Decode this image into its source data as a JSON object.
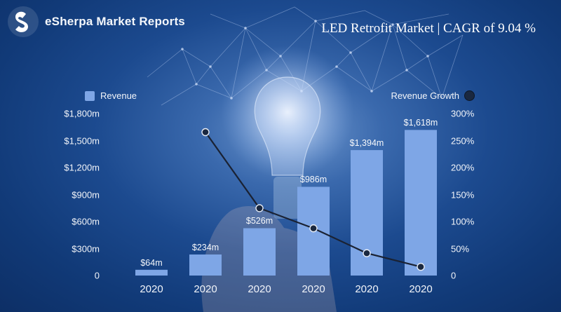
{
  "header": {
    "brand": "eSherpa Market Reports",
    "headline": "LED Retrofit Market | CAGR of 9.04 %"
  },
  "icons": {
    "logo": "esherpa-logo-icon",
    "background": "lightbulb-network-icon"
  },
  "colors": {
    "bar": "#7ea6e6",
    "line": "#1a2233",
    "marker": "#1a2840",
    "background": "#1c4a8f"
  },
  "chart_data": {
    "type": "bar",
    "categories": [
      "2020",
      "2020",
      "2020",
      "2020",
      "2020",
      "2020"
    ],
    "series": [
      {
        "name": "Revenue",
        "type": "bar",
        "axis": "left",
        "values": [
          64,
          234,
          526,
          986,
          1394,
          1618
        ],
        "labels": [
          "$64m",
          "$234m",
          "$526m",
          "$986m",
          "$1,394m",
          "$1,618m"
        ]
      },
      {
        "name": "Revenue Growth",
        "type": "line",
        "axis": "right",
        "values": [
          null,
          265.6,
          124.8,
          87.5,
          41.4,
          16.1
        ]
      }
    ],
    "yaxis_left": {
      "ylim": [
        0,
        1800
      ],
      "ticks": [
        "0",
        "$300m",
        "$600m",
        "$900m",
        "$1,200m",
        "$1,500m",
        "$1,800m"
      ]
    },
    "yaxis_right": {
      "ylim": [
        0,
        300
      ],
      "ticks": [
        "0",
        "50%",
        "100%",
        "150%",
        "200%",
        "250%",
        "300%"
      ]
    },
    "legend": {
      "left": "Revenue",
      "right": "Revenue Growth",
      "placement": "top"
    },
    "grid": false
  }
}
